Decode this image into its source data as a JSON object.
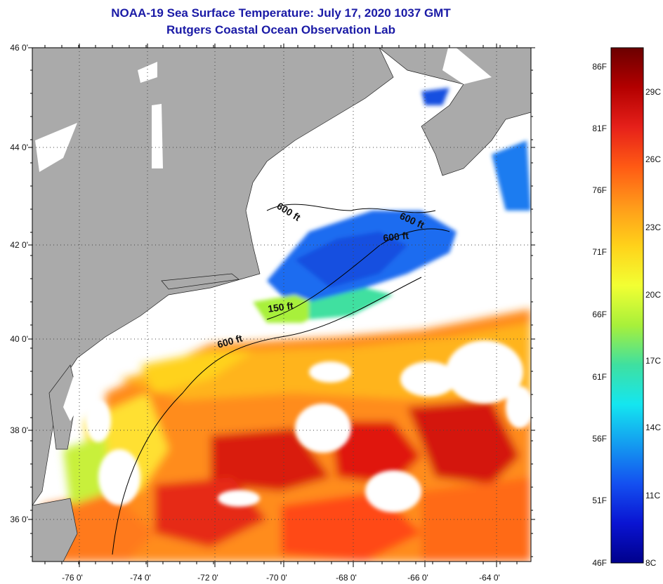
{
  "header": {
    "title": "NOAA-19 Sea Surface Temperature:  July 17, 2020 1037 GMT",
    "subtitle": "Rutgers Coastal Ocean Observation Lab"
  },
  "axes": {
    "lat_labels": [
      "46 0'",
      "44 0'",
      "42 0'",
      "40 0'",
      "38 0'",
      "36 0'"
    ],
    "lon_labels": [
      "-76 0'",
      "-74 0'",
      "-72 0'",
      "-70 0'",
      "-68 0'",
      "-66 0'",
      "-64 0'"
    ]
  },
  "isobaths": {
    "a": "600 ft",
    "b": "600 ft",
    "c": "600 ft",
    "d": "150 ft",
    "e": "600 ft"
  },
  "colorbar": {
    "fahrenheit": [
      "86F",
      "81F",
      "76F",
      "71F",
      "66F",
      "61F",
      "56F",
      "51F",
      "46F"
    ],
    "celsius": [
      "29C",
      "26C",
      "23C",
      "20C",
      "17C",
      "14C",
      "11C",
      "8C"
    ],
    "colors": [
      "#6b0000",
      "#b30000",
      "#e6201a",
      "#ff5a14",
      "#ff9a1a",
      "#ffd21a",
      "#f2ff33",
      "#a8f03a",
      "#3fe0a0",
      "#14e6f0",
      "#149cf0",
      "#1450f0",
      "#0a14d2",
      "#00008c"
    ]
  },
  "land_color": "#aaaaaa",
  "cloud_color": "#ffffff"
}
